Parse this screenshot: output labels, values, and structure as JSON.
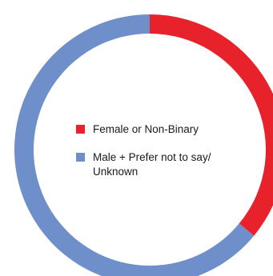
{
  "chart_data": {
    "type": "pie",
    "donut": true,
    "start_position": "12 o'clock",
    "direction": "clockwise",
    "legend_position": "center",
    "slices": [
      {
        "label": "Female or Non-Binary",
        "value": 36,
        "color": "#e8222b"
      },
      {
        "label": "Male + Prefer not to say/ Unknown",
        "value": 64,
        "color": "#6e8fca"
      }
    ],
    "legend": [
      {
        "lines": [
          "Female or Non-Binary"
        ],
        "color": "#e8222b"
      },
      {
        "lines": [
          "Male + Prefer not to say/",
          "Unknown"
        ],
        "color": "#6e8fca"
      }
    ]
  }
}
